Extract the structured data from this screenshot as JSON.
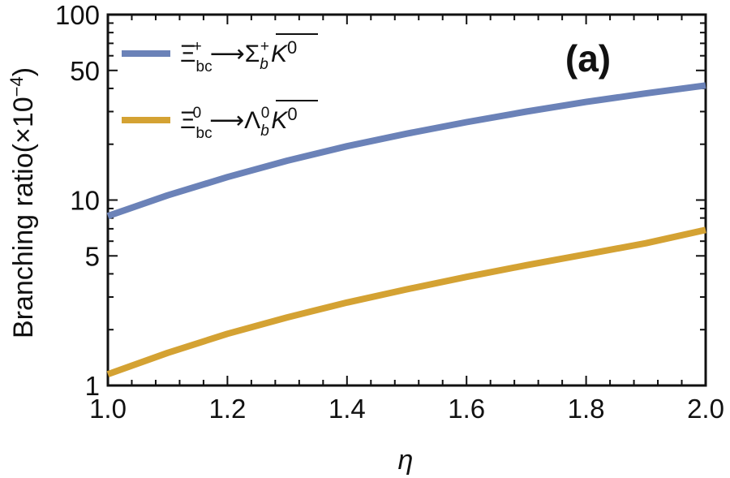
{
  "chart_data": {
    "type": "line",
    "title": "",
    "panel_label": "(a)",
    "xlabel": "η",
    "ylabel": "Branching ratio(×10",
    "ylabel_exponent": "−4",
    "ylabel_close": ")",
    "xlim": [
      1.0,
      2.0
    ],
    "ylim": [
      1,
      100
    ],
    "yscale": "log",
    "x_ticks": [
      {
        "value": 1.0,
        "label": "1.0"
      },
      {
        "value": 1.2,
        "label": "1.2"
      },
      {
        "value": 1.4,
        "label": "1.4"
      },
      {
        "value": 1.6,
        "label": "1.6"
      },
      {
        "value": 1.8,
        "label": "1.8"
      },
      {
        "value": 2.0,
        "label": "2.0"
      }
    ],
    "y_ticks": [
      {
        "value": 1,
        "label": "1"
      },
      {
        "value": 5,
        "label": "5"
      },
      {
        "value": 10,
        "label": "10"
      },
      {
        "value": 50,
        "label": "50"
      },
      {
        "value": 100,
        "label": "100"
      }
    ],
    "grid": false,
    "legend_position": "top-left",
    "x": [
      1.0,
      1.1,
      1.2,
      1.3,
      1.4,
      1.5,
      1.6,
      1.7,
      1.8,
      1.9,
      2.0
    ],
    "series": [
      {
        "name": "Ξbc+ ⟶ Σb+ K0bar",
        "legend": {
          "main": "Ξ",
          "sub1": "bc",
          "sup1": "+",
          "arrow": "⟶",
          "target": "Σ",
          "sub2": "b",
          "sup2": "+",
          "meson": "K",
          "sup3": "0"
        },
        "color": "#6b82b8",
        "values": [
          8.2,
          10.6,
          13.3,
          16.3,
          19.5,
          22.8,
          26.3,
          30.0,
          33.8,
          37.6,
          41.5
        ]
      },
      {
        "name": "Ξbc0 ⟶ Λb0 K0bar",
        "legend": {
          "main": "Ξ",
          "sub1": "bc",
          "sup1": "0",
          "arrow": "⟶",
          "target": "Λ",
          "sub2": "b",
          "sup2": "0",
          "meson": "K",
          "sup3": "0"
        },
        "color": "#d4a233",
        "values": [
          1.15,
          1.5,
          1.9,
          2.33,
          2.8,
          3.3,
          3.85,
          4.45,
          5.1,
          5.85,
          6.9
        ]
      }
    ]
  }
}
